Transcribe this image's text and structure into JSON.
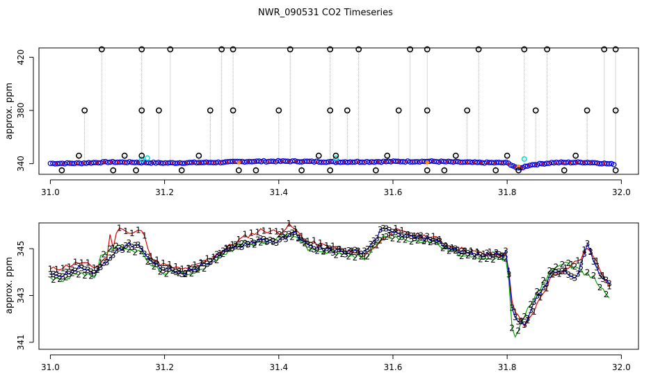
{
  "figure_title": "NWR_090531  CO2 Timeseries",
  "colors": {
    "black": "#000000",
    "grey": "#aaaaaa",
    "red": "#e00000",
    "green": "#00aa00",
    "blue": "#0000dd",
    "cyan": "#00d8d8",
    "orange": "#ff8800"
  },
  "chart_data": [
    {
      "type": "scatter",
      "title": "",
      "xlabel": "",
      "ylabel": "approx. ppm",
      "xlim": [
        30.98,
        32.03
      ],
      "ylim": [
        332,
        427
      ],
      "x_ticks": [
        31.0,
        31.2,
        31.4,
        31.6,
        31.8,
        32.0
      ],
      "x_tick_labels": [
        "31.0",
        "31.2",
        "31.4",
        "31.6",
        "31.8",
        "32.0"
      ],
      "y_ticks": [
        340,
        380,
        420
      ],
      "y_tick_labels": [
        "340",
        "380",
        "420"
      ],
      "baseline": [
        [
          31.0,
          340.2
        ],
        [
          31.05,
          340.3
        ],
        [
          31.1,
          341.2
        ],
        [
          31.15,
          341.0
        ],
        [
          31.17,
          340.8
        ],
        [
          31.2,
          340.5
        ],
        [
          31.3,
          341.0
        ],
        [
          31.33,
          341.5
        ],
        [
          31.35,
          341.7
        ],
        [
          31.42,
          341.8
        ],
        [
          31.5,
          341.3
        ],
        [
          31.6,
          341.6
        ],
        [
          31.67,
          341.7
        ],
        [
          31.75,
          340.8
        ],
        [
          31.8,
          340.7
        ],
        [
          31.82,
          336.3
        ],
        [
          31.84,
          339.0
        ],
        [
          31.88,
          340.8
        ],
        [
          31.93,
          341.0
        ],
        [
          31.95,
          340.8
        ],
        [
          31.99,
          339.5
        ]
      ],
      "outliers_high": [
        [
          31.09,
          427
        ],
        [
          31.16,
          427
        ],
        [
          31.21,
          427
        ],
        [
          31.3,
          427
        ],
        [
          31.32,
          427
        ],
        [
          31.42,
          427
        ],
        [
          31.49,
          427
        ],
        [
          31.54,
          427
        ],
        [
          31.63,
          427
        ],
        [
          31.66,
          427
        ],
        [
          31.75,
          427
        ],
        [
          31.83,
          427
        ],
        [
          31.87,
          427
        ],
        [
          31.97,
          427
        ],
        [
          31.99,
          427
        ]
      ],
      "outliers_mid": [
        [
          31.06,
          380
        ],
        [
          31.16,
          380
        ],
        [
          31.19,
          380
        ],
        [
          31.28,
          380
        ],
        [
          31.32,
          380
        ],
        [
          31.4,
          380
        ],
        [
          31.49,
          380
        ],
        [
          31.52,
          380
        ],
        [
          31.61,
          380
        ],
        [
          31.66,
          380
        ],
        [
          31.73,
          380
        ],
        [
          31.85,
          380
        ],
        [
          31.94,
          380
        ],
        [
          31.99,
          380
        ]
      ],
      "outliers_low": [
        [
          31.02,
          335
        ],
        [
          31.11,
          335
        ],
        [
          31.15,
          335
        ],
        [
          31.23,
          335
        ],
        [
          31.33,
          335
        ],
        [
          31.36,
          335
        ],
        [
          31.44,
          335
        ],
        [
          31.49,
          335
        ],
        [
          31.57,
          335
        ],
        [
          31.66,
          335
        ],
        [
          31.69,
          335
        ],
        [
          31.78,
          335
        ],
        [
          31.82,
          335
        ],
        [
          31.9,
          335
        ],
        [
          31.99,
          335
        ]
      ],
      "outliers_near": [
        [
          31.05,
          346
        ],
        [
          31.13,
          346
        ],
        [
          31.26,
          346
        ],
        [
          31.47,
          346
        ],
        [
          31.5,
          346
        ],
        [
          31.59,
          346
        ],
        [
          31.71,
          346
        ],
        [
          31.8,
          346
        ],
        [
          31.92,
          346
        ],
        [
          31.16,
          346
        ]
      ],
      "cyan_points": [
        [
          31.16,
          343.0
        ],
        [
          31.17,
          344.2
        ],
        [
          31.5,
          344.0
        ],
        [
          31.83,
          343.5
        ]
      ],
      "orange_points": [
        [
          31.33,
          341.0
        ],
        [
          31.66,
          341.0
        ],
        [
          31.82,
          338.0
        ]
      ]
    },
    {
      "type": "line",
      "title": "",
      "xlabel": "",
      "ylabel": "approx. ppm",
      "xlim": [
        30.98,
        32.03
      ],
      "ylim": [
        340.7,
        346.1
      ],
      "x_ticks": [
        31.0,
        31.2,
        31.4,
        31.6,
        31.8,
        32.0
      ],
      "x_tick_labels": [
        "31.0",
        "31.2",
        "31.4",
        "31.6",
        "31.8",
        "32.0"
      ],
      "y_ticks": [
        341,
        343,
        345
      ],
      "y_tick_labels": [
        "341",
        "343",
        "345"
      ],
      "series": [
        {
          "name": "1",
          "color": "red",
          "points": [
            [
              31.0,
              344.1
            ],
            [
              31.02,
              344.2
            ],
            [
              31.05,
              344.4
            ],
            [
              31.08,
              344.2
            ],
            [
              31.1,
              344.7
            ],
            [
              31.1,
              345.9
            ],
            [
              31.11,
              345.1
            ],
            [
              31.12,
              346.0
            ],
            [
              31.14,
              345.6
            ],
            [
              31.16,
              345.8
            ],
            [
              31.18,
              344.5
            ],
            [
              31.2,
              344.3
            ],
            [
              31.23,
              344.1
            ],
            [
              31.26,
              344.3
            ],
            [
              31.3,
              344.9
            ],
            [
              31.34,
              345.5
            ],
            [
              31.37,
              345.8
            ],
            [
              31.4,
              345.7
            ],
            [
              31.42,
              346.0
            ],
            [
              31.45,
              345.3
            ],
            [
              31.5,
              345.0
            ],
            [
              31.55,
              344.7
            ],
            [
              31.6,
              345.8
            ],
            [
              31.63,
              345.6
            ],
            [
              31.67,
              345.5
            ],
            [
              31.7,
              345.1
            ],
            [
              31.75,
              344.8
            ],
            [
              31.8,
              344.7
            ],
            [
              31.81,
              342.5
            ],
            [
              31.83,
              341.6
            ],
            [
              31.85,
              342.5
            ],
            [
              31.88,
              343.9
            ],
            [
              31.9,
              344.1
            ],
            [
              31.93,
              344.6
            ],
            [
              31.94,
              345.1
            ],
            [
              31.98,
              343.4
            ]
          ]
        },
        {
          "name": "2",
          "color": "green",
          "points": [
            [
              31.0,
              343.8
            ],
            [
              31.02,
              343.6
            ],
            [
              31.05,
              344.0
            ],
            [
              31.08,
              343.8
            ],
            [
              31.09,
              344.8
            ],
            [
              31.11,
              345.0
            ],
            [
              31.13,
              345.1
            ],
            [
              31.16,
              344.8
            ],
            [
              31.18,
              344.2
            ],
            [
              31.2,
              344.0
            ],
            [
              31.23,
              343.9
            ],
            [
              31.26,
              344.1
            ],
            [
              31.3,
              344.7
            ],
            [
              31.34,
              345.3
            ],
            [
              31.37,
              345.2
            ],
            [
              31.4,
              345.5
            ],
            [
              31.43,
              345.6
            ],
            [
              31.45,
              345.0
            ],
            [
              31.5,
              344.8
            ],
            [
              31.55,
              344.6
            ],
            [
              31.58,
              345.5
            ],
            [
              31.63,
              345.4
            ],
            [
              31.67,
              345.3
            ],
            [
              31.7,
              344.9
            ],
            [
              31.75,
              344.5
            ],
            [
              31.8,
              344.6
            ],
            [
              31.81,
              341.1
            ],
            [
              31.83,
              342.1
            ],
            [
              31.85,
              343.0
            ],
            [
              31.88,
              344.2
            ],
            [
              31.9,
              344.4
            ],
            [
              31.93,
              344.0
            ],
            [
              31.95,
              343.8
            ],
            [
              31.98,
              342.9
            ]
          ]
        },
        {
          "name": "3",
          "color": "blue",
          "points": [
            [
              31.0,
              344.0
            ],
            [
              31.02,
              343.8
            ],
            [
              31.05,
              344.2
            ],
            [
              31.08,
              344.0
            ],
            [
              31.1,
              344.5
            ],
            [
              31.12,
              344.9
            ],
            [
              31.14,
              345.2
            ],
            [
              31.16,
              345.0
            ],
            [
              31.18,
              344.3
            ],
            [
              31.2,
              344.1
            ],
            [
              31.23,
              344.0
            ],
            [
              31.26,
              344.2
            ],
            [
              31.3,
              344.8
            ],
            [
              31.34,
              345.2
            ],
            [
              31.37,
              345.4
            ],
            [
              31.4,
              345.3
            ],
            [
              31.43,
              345.7
            ],
            [
              31.45,
              345.1
            ],
            [
              31.5,
              344.9
            ],
            [
              31.55,
              344.8
            ],
            [
              31.58,
              345.8
            ],
            [
              31.63,
              345.5
            ],
            [
              31.67,
              345.4
            ],
            [
              31.7,
              345.0
            ],
            [
              31.75,
              344.7
            ],
            [
              31.8,
              344.8
            ],
            [
              31.81,
              342.0
            ],
            [
              31.83,
              341.8
            ],
            [
              31.85,
              342.8
            ],
            [
              31.88,
              344.0
            ],
            [
              31.9,
              344.0
            ],
            [
              31.92,
              343.6
            ],
            [
              31.94,
              345.2
            ],
            [
              31.96,
              344.0
            ],
            [
              31.98,
              343.5
            ]
          ]
        }
      ]
    }
  ]
}
